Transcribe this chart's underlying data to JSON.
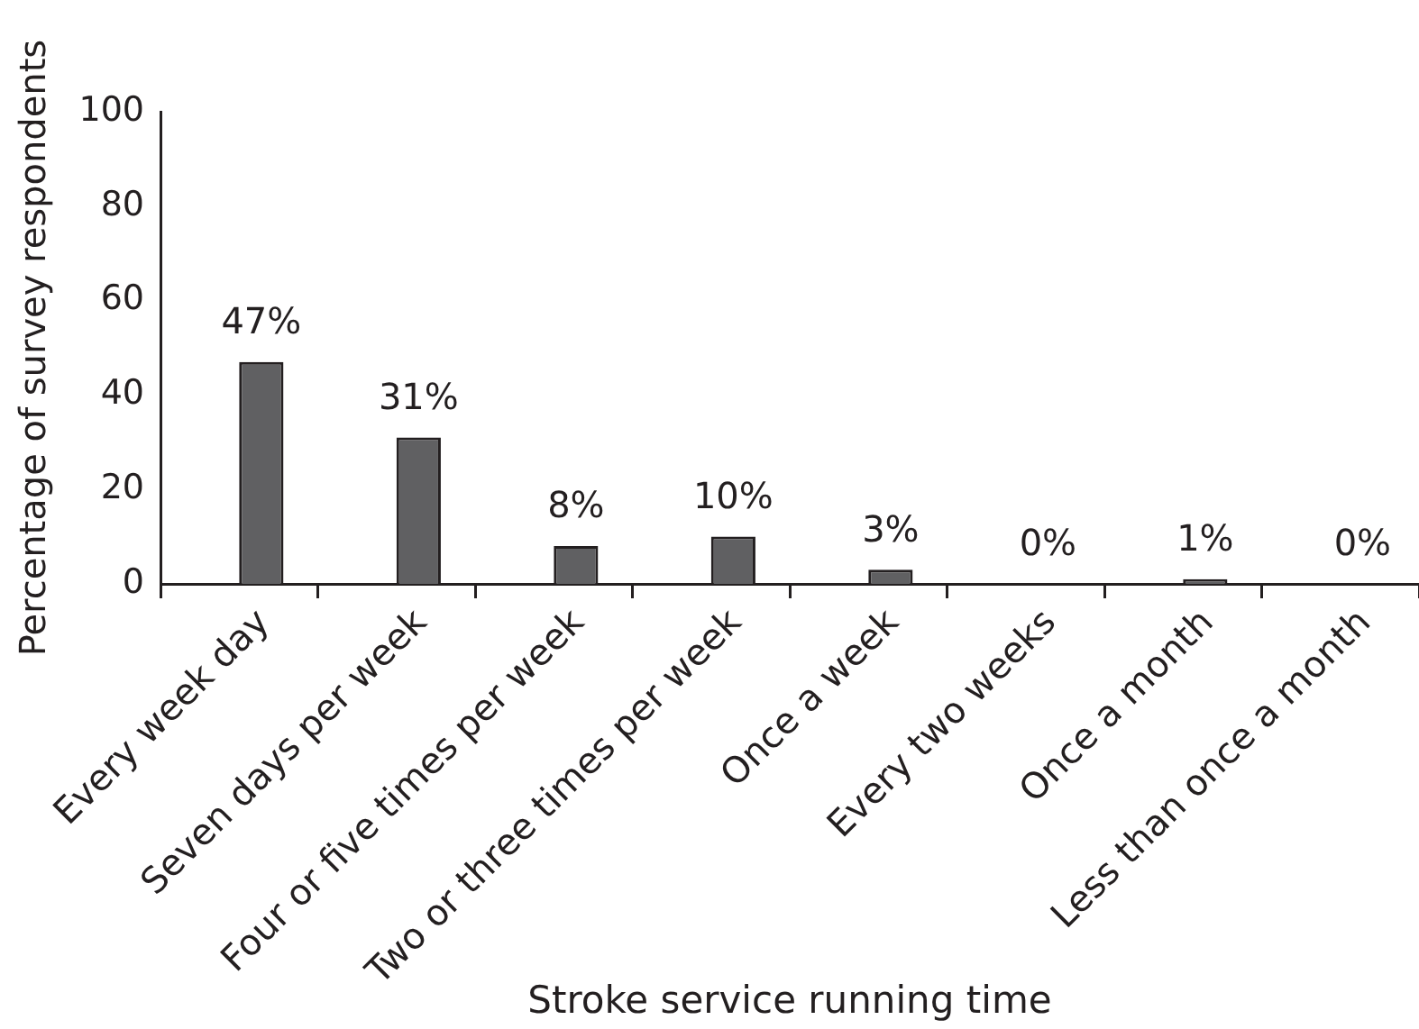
{
  "chart_data": {
    "type": "bar",
    "xlabel": "Stroke service running time",
    "ylabel": "Percentage of survey respondents",
    "categories": [
      "Every week day",
      "Seven days per week",
      "Four or five times per week",
      "Two or three times per week",
      "Once a week",
      "Every two weeks",
      "Once a month",
      "Less than once a month"
    ],
    "values": [
      47,
      31,
      8,
      10,
      3,
      0,
      1,
      0
    ],
    "value_labels": [
      "47%",
      "31%",
      "8%",
      "10%",
      "3%",
      "0%",
      "1%",
      "0%"
    ],
    "color": "#606062",
    "ylim": [
      0,
      100
    ],
    "yticks": [
      0,
      20,
      40,
      60,
      80,
      100
    ]
  }
}
